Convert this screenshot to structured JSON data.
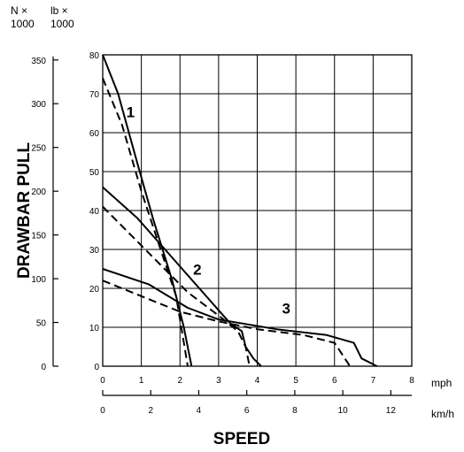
{
  "chart_data": {
    "type": "line",
    "title": "",
    "ylabel": "DRAWBAR PULL",
    "xlabel": "SPEED",
    "y_units": {
      "newton": "N ×\n1000",
      "pound": "lb ×\n1000"
    },
    "x_units": {
      "mph": "mph",
      "kmh": "km/h"
    },
    "xlim_mph": [
      0,
      8
    ],
    "ylim_lb": [
      0,
      80
    ],
    "grid": true,
    "lb_ticks": [
      "0",
      "10",
      "20",
      "30",
      "40",
      "50",
      "60",
      "70",
      "80"
    ],
    "n_ticks": [
      "0",
      "50",
      "100",
      "150",
      "200",
      "250",
      "300",
      "350"
    ],
    "mph_ticks": [
      "0",
      "1",
      "2",
      "3",
      "4",
      "5",
      "6",
      "7",
      "8"
    ],
    "kmh_ticks": [
      "0",
      "2",
      "4",
      "6",
      "8",
      "10",
      "12"
    ],
    "n_tick_values": [
      0,
      50,
      100,
      150,
      200,
      250,
      300,
      350
    ],
    "kmh_tick_values": [
      0,
      2,
      4,
      6,
      8,
      10,
      12
    ],
    "series": [
      {
        "style": "solid",
        "x": [
          0,
          0.4,
          0.9,
          1.3,
          1.8,
          2.1,
          2.3
        ],
        "y": [
          80,
          70,
          52,
          38,
          22,
          10,
          0
        ]
      },
      {
        "style": "solid",
        "x": [
          0,
          0.9,
          1.7,
          2.5,
          3.3,
          3.6,
          3.7,
          3.9,
          4.1
        ],
        "y": [
          46,
          38,
          29,
          20,
          11,
          9,
          5,
          2,
          0
        ]
      },
      {
        "style": "solid",
        "x": [
          0,
          1.2,
          2.2,
          3.0,
          4.5,
          5.8,
          6.5,
          6.7,
          7.1
        ],
        "y": [
          25,
          21,
          15,
          12,
          9.5,
          8,
          6,
          2,
          0
        ]
      },
      {
        "style": "dashed",
        "x": [
          0,
          0.5,
          1.0,
          1.5,
          1.9,
          2.2
        ],
        "y": [
          74,
          62,
          45,
          30,
          18,
          0
        ]
      },
      {
        "style": "dashed",
        "x": [
          0,
          0.6,
          1.4,
          2.2,
          3.0,
          3.5,
          3.7,
          3.8
        ],
        "y": [
          41,
          35,
          27,
          19,
          13,
          9,
          5,
          0
        ]
      },
      {
        "style": "dashed",
        "x": [
          0,
          1.0,
          2.0,
          3.0,
          4.0,
          5.2,
          6.0,
          6.4
        ],
        "y": [
          22,
          18,
          14,
          11.5,
          9.5,
          8,
          6,
          0
        ]
      }
    ],
    "curve_labels": [
      {
        "text": "1",
        "x": 0.72,
        "y": 64
      },
      {
        "text": "2",
        "x": 2.45,
        "y": 23.5
      },
      {
        "text": "3",
        "x": 4.75,
        "y": 13.5
      }
    ]
  }
}
